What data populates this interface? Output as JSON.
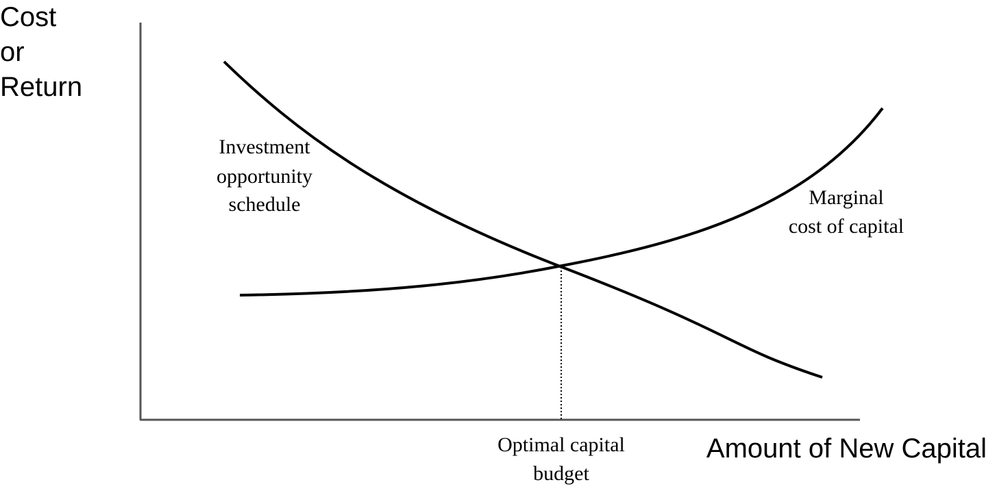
{
  "y_axis_label": [
    "Cost",
    "or",
    "Return"
  ],
  "x_axis_label": "Amount of New Capital",
  "curves": {
    "investment_opportunity": [
      "Investment",
      "opportunity",
      "schedule"
    ],
    "marginal_cost": [
      "Marginal",
      "cost of capital"
    ]
  },
  "intersection_label": [
    "Optimal capital",
    "budget"
  ]
}
